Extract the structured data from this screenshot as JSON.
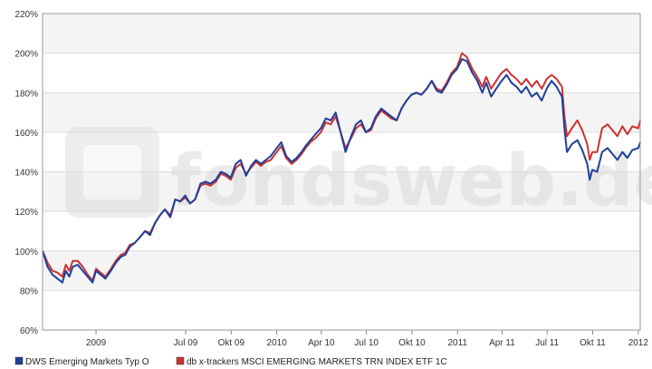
{
  "chart_data": {
    "type": "line",
    "title": "",
    "xlabel": "",
    "ylabel": "",
    "ylim": [
      60,
      220
    ],
    "yticks": [
      "60%",
      "80%",
      "100%",
      "120%",
      "140%",
      "160%",
      "180%",
      "200%",
      "220%"
    ],
    "ytick_values": [
      60,
      80,
      100,
      120,
      140,
      160,
      180,
      200,
      220
    ],
    "xlim": [
      "2008-09-15",
      "2012-01-05"
    ],
    "xticks": [
      {
        "label": "2009",
        "date": "2009-01-01"
      },
      {
        "label": "Jul 09",
        "date": "2009-07-01"
      },
      {
        "label": "Okt 09",
        "date": "2009-10-01"
      },
      {
        "label": "2010",
        "date": "2010-01-01"
      },
      {
        "label": "Apr 10",
        "date": "2010-04-01"
      },
      {
        "label": "Jul 10",
        "date": "2010-07-01"
      },
      {
        "label": "Okt 10",
        "date": "2010-10-01"
      },
      {
        "label": "2011",
        "date": "2011-01-01"
      },
      {
        "label": "Apr 11",
        "date": "2011-04-01"
      },
      {
        "label": "Jul 11",
        "date": "2011-07-01"
      },
      {
        "label": "Okt 11",
        "date": "2011-10-01"
      },
      {
        "label": "2012",
        "date": "2012-01-01"
      }
    ],
    "grid": true,
    "legend_position": "bottom",
    "series": [
      {
        "name": "DWS Emerging Markets Typ O",
        "color": "#1f3f99",
        "points": [
          [
            "2008-09-15",
            100
          ],
          [
            "2008-09-25",
            92
          ],
          [
            "2008-10-05",
            88
          ],
          [
            "2008-10-15",
            86
          ],
          [
            "2008-10-25",
            84
          ],
          [
            "2008-11-01",
            90
          ],
          [
            "2008-11-08",
            87
          ],
          [
            "2008-11-15",
            92
          ],
          [
            "2008-11-25",
            93
          ],
          [
            "2008-12-05",
            90
          ],
          [
            "2008-12-15",
            87
          ],
          [
            "2008-12-25",
            84
          ],
          [
            "2009-01-01",
            90
          ],
          [
            "2009-01-10",
            88
          ],
          [
            "2009-01-20",
            86
          ],
          [
            "2009-01-31",
            90
          ],
          [
            "2009-02-10",
            94
          ],
          [
            "2009-02-20",
            97
          ],
          [
            "2009-03-01",
            98
          ],
          [
            "2009-03-10",
            102
          ],
          [
            "2009-03-20",
            104
          ],
          [
            "2009-03-31",
            107
          ],
          [
            "2009-04-10",
            110
          ],
          [
            "2009-04-20",
            108
          ],
          [
            "2009-04-30",
            114
          ],
          [
            "2009-05-10",
            118
          ],
          [
            "2009-05-20",
            121
          ],
          [
            "2009-05-31",
            117
          ],
          [
            "2009-06-10",
            126
          ],
          [
            "2009-06-20",
            125
          ],
          [
            "2009-06-30",
            128
          ],
          [
            "2009-07-10",
            124
          ],
          [
            "2009-07-20",
            126
          ],
          [
            "2009-07-31",
            134
          ],
          [
            "2009-08-10",
            135
          ],
          [
            "2009-08-20",
            134
          ],
          [
            "2009-08-31",
            136
          ],
          [
            "2009-09-10",
            140
          ],
          [
            "2009-09-20",
            139
          ],
          [
            "2009-09-30",
            137
          ],
          [
            "2009-10-10",
            144
          ],
          [
            "2009-10-20",
            146
          ],
          [
            "2009-10-31",
            138
          ],
          [
            "2009-11-10",
            143
          ],
          [
            "2009-11-20",
            146
          ],
          [
            "2009-11-30",
            144
          ],
          [
            "2009-12-10",
            146
          ],
          [
            "2009-12-20",
            148
          ],
          [
            "2010-01-01",
            152
          ],
          [
            "2010-01-10",
            155
          ],
          [
            "2010-01-20",
            148
          ],
          [
            "2010-01-31",
            145
          ],
          [
            "2010-02-10",
            147
          ],
          [
            "2010-02-20",
            150
          ],
          [
            "2010-02-28",
            153
          ],
          [
            "2010-03-10",
            156
          ],
          [
            "2010-03-20",
            159
          ],
          [
            "2010-03-31",
            162
          ],
          [
            "2010-04-10",
            167
          ],
          [
            "2010-04-20",
            166
          ],
          [
            "2010-04-30",
            170
          ],
          [
            "2010-05-10",
            160
          ],
          [
            "2010-05-20",
            150
          ],
          [
            "2010-05-31",
            158
          ],
          [
            "2010-06-10",
            164
          ],
          [
            "2010-06-20",
            166
          ],
          [
            "2010-06-30",
            160
          ],
          [
            "2010-07-10",
            162
          ],
          [
            "2010-07-20",
            168
          ],
          [
            "2010-07-31",
            172
          ],
          [
            "2010-08-10",
            170
          ],
          [
            "2010-08-20",
            168
          ],
          [
            "2010-08-31",
            166
          ],
          [
            "2010-09-10",
            172
          ],
          [
            "2010-09-20",
            176
          ],
          [
            "2010-09-30",
            179
          ],
          [
            "2010-10-10",
            180
          ],
          [
            "2010-10-20",
            179
          ],
          [
            "2010-10-31",
            182
          ],
          [
            "2010-11-10",
            186
          ],
          [
            "2010-11-20",
            181
          ],
          [
            "2010-11-30",
            180
          ],
          [
            "2010-12-10",
            184
          ],
          [
            "2010-12-20",
            189
          ],
          [
            "2010-12-31",
            192
          ],
          [
            "2011-01-10",
            197
          ],
          [
            "2011-01-20",
            196
          ],
          [
            "2011-01-31",
            190
          ],
          [
            "2011-02-10",
            186
          ],
          [
            "2011-02-20",
            180
          ],
          [
            "2011-02-28",
            185
          ],
          [
            "2011-03-10",
            178
          ],
          [
            "2011-03-20",
            182
          ],
          [
            "2011-03-31",
            186
          ],
          [
            "2011-04-10",
            189
          ],
          [
            "2011-04-20",
            185
          ],
          [
            "2011-04-30",
            183
          ],
          [
            "2011-05-10",
            180
          ],
          [
            "2011-05-20",
            183
          ],
          [
            "2011-05-31",
            178
          ],
          [
            "2011-06-10",
            180
          ],
          [
            "2011-06-20",
            176
          ],
          [
            "2011-06-30",
            182
          ],
          [
            "2011-07-10",
            186
          ],
          [
            "2011-07-20",
            183
          ],
          [
            "2011-07-31",
            178
          ],
          [
            "2011-08-05",
            162
          ],
          [
            "2011-08-10",
            150
          ],
          [
            "2011-08-20",
            154
          ],
          [
            "2011-08-31",
            156
          ],
          [
            "2011-09-10",
            151
          ],
          [
            "2011-09-20",
            144
          ],
          [
            "2011-09-25",
            136
          ],
          [
            "2011-09-30",
            141
          ],
          [
            "2011-10-10",
            140
          ],
          [
            "2011-10-20",
            150
          ],
          [
            "2011-10-31",
            152
          ],
          [
            "2011-11-10",
            149
          ],
          [
            "2011-11-20",
            146
          ],
          [
            "2011-11-30",
            150
          ],
          [
            "2011-12-10",
            147
          ],
          [
            "2011-12-20",
            151
          ],
          [
            "2012-01-01",
            152
          ],
          [
            "2012-01-05",
            155
          ]
        ]
      },
      {
        "name": "db x-trackers MSCI EMERGING MARKETS TRN INDEX ETF 1C",
        "color": "#cc3333",
        "points": [
          [
            "2008-09-15",
            100
          ],
          [
            "2008-09-25",
            94
          ],
          [
            "2008-10-05",
            90
          ],
          [
            "2008-10-15",
            89
          ],
          [
            "2008-10-25",
            87
          ],
          [
            "2008-11-01",
            93
          ],
          [
            "2008-11-08",
            90
          ],
          [
            "2008-11-15",
            95
          ],
          [
            "2008-11-25",
            95
          ],
          [
            "2008-12-05",
            92
          ],
          [
            "2008-12-15",
            88
          ],
          [
            "2008-12-25",
            85
          ],
          [
            "2009-01-01",
            91
          ],
          [
            "2009-01-10",
            89
          ],
          [
            "2009-01-20",
            87
          ],
          [
            "2009-01-31",
            91
          ],
          [
            "2009-02-10",
            95
          ],
          [
            "2009-02-20",
            98
          ],
          [
            "2009-03-01",
            99
          ],
          [
            "2009-03-10",
            103
          ],
          [
            "2009-03-20",
            104
          ],
          [
            "2009-03-31",
            107
          ],
          [
            "2009-04-10",
            110
          ],
          [
            "2009-04-20",
            109
          ],
          [
            "2009-04-30",
            114
          ],
          [
            "2009-05-10",
            118
          ],
          [
            "2009-05-20",
            121
          ],
          [
            "2009-05-31",
            118
          ],
          [
            "2009-06-10",
            126
          ],
          [
            "2009-06-20",
            125
          ],
          [
            "2009-06-30",
            127
          ],
          [
            "2009-07-10",
            124
          ],
          [
            "2009-07-20",
            126
          ],
          [
            "2009-07-31",
            133
          ],
          [
            "2009-08-10",
            134
          ],
          [
            "2009-08-20",
            133
          ],
          [
            "2009-08-31",
            135
          ],
          [
            "2009-09-10",
            139
          ],
          [
            "2009-09-20",
            138
          ],
          [
            "2009-09-30",
            136
          ],
          [
            "2009-10-10",
            142
          ],
          [
            "2009-10-20",
            144
          ],
          [
            "2009-10-31",
            139
          ],
          [
            "2009-11-10",
            142
          ],
          [
            "2009-11-20",
            145
          ],
          [
            "2009-11-30",
            143
          ],
          [
            "2009-12-10",
            145
          ],
          [
            "2009-12-20",
            146
          ],
          [
            "2010-01-01",
            150
          ],
          [
            "2010-01-10",
            153
          ],
          [
            "2010-01-20",
            147
          ],
          [
            "2010-01-31",
            144
          ],
          [
            "2010-02-10",
            146
          ],
          [
            "2010-02-20",
            149
          ],
          [
            "2010-02-28",
            152
          ],
          [
            "2010-03-10",
            155
          ],
          [
            "2010-03-20",
            157
          ],
          [
            "2010-03-31",
            160
          ],
          [
            "2010-04-10",
            165
          ],
          [
            "2010-04-20",
            164
          ],
          [
            "2010-04-30",
            168
          ],
          [
            "2010-05-10",
            160
          ],
          [
            "2010-05-20",
            152
          ],
          [
            "2010-05-31",
            157
          ],
          [
            "2010-06-10",
            162
          ],
          [
            "2010-06-20",
            164
          ],
          [
            "2010-06-30",
            160
          ],
          [
            "2010-07-10",
            161
          ],
          [
            "2010-07-20",
            167
          ],
          [
            "2010-07-31",
            171
          ],
          [
            "2010-08-10",
            169
          ],
          [
            "2010-08-20",
            167
          ],
          [
            "2010-08-31",
            166
          ],
          [
            "2010-09-10",
            172
          ],
          [
            "2010-09-20",
            176
          ],
          [
            "2010-09-30",
            179
          ],
          [
            "2010-10-10",
            180
          ],
          [
            "2010-10-20",
            179
          ],
          [
            "2010-10-31",
            182
          ],
          [
            "2010-11-10",
            186
          ],
          [
            "2010-11-20",
            182
          ],
          [
            "2010-11-30",
            181
          ],
          [
            "2010-12-10",
            185
          ],
          [
            "2010-12-20",
            190
          ],
          [
            "2010-12-31",
            193
          ],
          [
            "2011-01-10",
            200
          ],
          [
            "2011-01-20",
            198
          ],
          [
            "2011-01-31",
            192
          ],
          [
            "2011-02-10",
            188
          ],
          [
            "2011-02-20",
            183
          ],
          [
            "2011-02-28",
            188
          ],
          [
            "2011-03-10",
            182
          ],
          [
            "2011-03-20",
            186
          ],
          [
            "2011-03-31",
            190
          ],
          [
            "2011-04-10",
            192
          ],
          [
            "2011-04-20",
            189
          ],
          [
            "2011-04-30",
            187
          ],
          [
            "2011-05-10",
            184
          ],
          [
            "2011-05-20",
            187
          ],
          [
            "2011-05-31",
            183
          ],
          [
            "2011-06-10",
            186
          ],
          [
            "2011-06-20",
            182
          ],
          [
            "2011-06-30",
            187
          ],
          [
            "2011-07-10",
            189
          ],
          [
            "2011-07-20",
            187
          ],
          [
            "2011-07-31",
            183
          ],
          [
            "2011-08-05",
            168
          ],
          [
            "2011-08-10",
            158
          ],
          [
            "2011-08-20",
            162
          ],
          [
            "2011-08-31",
            166
          ],
          [
            "2011-09-10",
            161
          ],
          [
            "2011-09-20",
            154
          ],
          [
            "2011-09-25",
            146
          ],
          [
            "2011-09-30",
            150
          ],
          [
            "2011-10-10",
            150
          ],
          [
            "2011-10-20",
            162
          ],
          [
            "2011-10-31",
            164
          ],
          [
            "2011-11-10",
            161
          ],
          [
            "2011-11-20",
            158
          ],
          [
            "2011-11-30",
            163
          ],
          [
            "2011-12-10",
            159
          ],
          [
            "2011-12-20",
            163
          ],
          [
            "2012-01-01",
            162
          ],
          [
            "2012-01-05",
            166
          ]
        ]
      }
    ]
  },
  "watermark": "fondsweb.de"
}
